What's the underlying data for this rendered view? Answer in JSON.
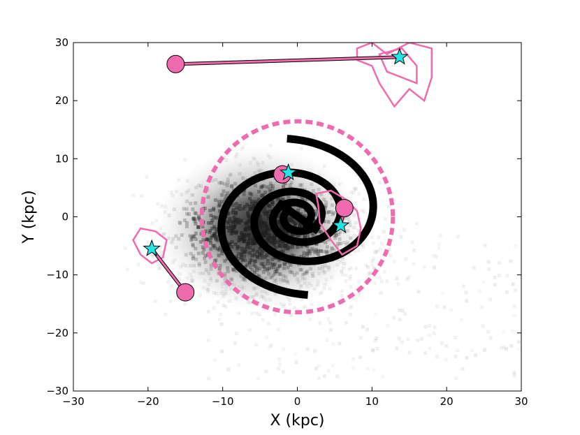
{
  "chart_data": {
    "type": "scatter",
    "title": "",
    "xlabel": "X (kpc)",
    "ylabel": "Y (kpc)",
    "xlim": [
      -30,
      30
    ],
    "ylim": [
      -30,
      30
    ],
    "xticks": [
      -30,
      -20,
      -10,
      0,
      10,
      20,
      30
    ],
    "yticks": [
      -30,
      -20,
      -10,
      0,
      10,
      20,
      30
    ],
    "xtick_labels": [
      "−30",
      "−20",
      "−10",
      "0",
      "10",
      "20",
      "30"
    ],
    "ytick_labels": [
      "−30",
      "−20",
      "−10",
      "0",
      "10",
      "20",
      "30"
    ],
    "grid": false,
    "colors": {
      "arm": "#000000",
      "pink": "#f06aae",
      "star": "#22e6e6",
      "density": "#222222"
    },
    "dashed_circle": {
      "center": [
        0,
        0
      ],
      "radius": 12.8
    },
    "spiral_arms": [
      {
        "theta_start": -1.1,
        "theta_end": 11.1,
        "a": 1.4,
        "b": 0.18,
        "theta_offset": 0.4
      },
      {
        "theta_start": 2.04,
        "theta_end": 14.24,
        "a": 1.4,
        "b": 0.18,
        "theta_offset": 0.4
      }
    ],
    "bar": {
      "from": [
        -2.6,
        2.5
      ],
      "to": [
        2.8,
        -2.5
      ]
    },
    "star_markers": [
      {
        "x": 13.7,
        "y": 27.5
      },
      {
        "x": -19.5,
        "y": -5.5
      },
      {
        "x": -1.2,
        "y": 7.6
      },
      {
        "x": 5.8,
        "y": -1.5
      }
    ],
    "circle_markers": [
      {
        "x": -16.3,
        "y": 26.3
      },
      {
        "x": -15.0,
        "y": -13.0
      },
      {
        "x": -2.0,
        "y": 7.3
      },
      {
        "x": 6.3,
        "y": 1.5
      }
    ],
    "connectors": [
      {
        "from": [
          -16.3,
          26.3
        ],
        "to": [
          13.7,
          27.5
        ]
      },
      {
        "from": [
          -19.5,
          -5.5
        ],
        "to": [
          -15.0,
          -13.0
        ]
      },
      {
        "from": [
          -2.0,
          7.3
        ],
        "to": [
          -1.2,
          7.6
        ]
      },
      {
        "from": [
          6.3,
          1.5
        ],
        "to": [
          5.8,
          -1.5
        ]
      }
    ],
    "contours": [
      {
        "points": [
          [
            8,
            29
          ],
          [
            10,
            30
          ],
          [
            12,
            28
          ],
          [
            15,
            30
          ],
          [
            18,
            29
          ],
          [
            18,
            24
          ],
          [
            17,
            20
          ],
          [
            15,
            22
          ],
          [
            13,
            19
          ],
          [
            11,
            23
          ],
          [
            10,
            26
          ],
          [
            8,
            27
          ]
        ]
      },
      {
        "points": [
          [
            11,
            28
          ],
          [
            14,
            29
          ],
          [
            16,
            26
          ],
          [
            16,
            23
          ],
          [
            14,
            24
          ],
          [
            12,
            25
          ]
        ]
      },
      {
        "points": [
          [
            -21,
            -2
          ],
          [
            -19,
            -2.5
          ],
          [
            -17.5,
            -4
          ],
          [
            -18,
            -7
          ],
          [
            -19.5,
            -8
          ],
          [
            -21,
            -6.5
          ],
          [
            -22,
            -4
          ]
        ]
      },
      {
        "points": [
          [
            2.5,
            4
          ],
          [
            4.5,
            4.5
          ],
          [
            6.5,
            3
          ],
          [
            8,
            1
          ],
          [
            8.5,
            -2
          ],
          [
            8,
            -5
          ],
          [
            6,
            -6.5
          ],
          [
            4.5,
            -4
          ],
          [
            3,
            -1
          ],
          [
            2.8,
            2
          ]
        ]
      }
    ]
  }
}
